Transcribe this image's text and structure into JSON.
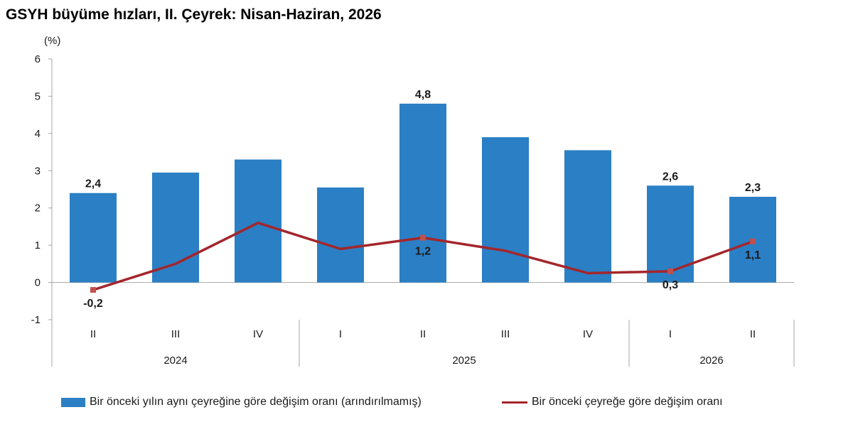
{
  "chart_data": {
    "type": "bar",
    "title": "GSYH büyüme hızları, II. Çeyrek: Nisan-Haziran, 2026",
    "unit_label": "(%)",
    "categories": [
      "II",
      "III",
      "IV",
      "I",
      "II",
      "III",
      "IV",
      "I",
      "II"
    ],
    "year_groups": [
      {
        "label": "2024",
        "span": 3
      },
      {
        "label": "2025",
        "span": 4
      },
      {
        "label": "2026",
        "span": 2
      }
    ],
    "ylim": [
      -1,
      6
    ],
    "yticks": [
      "-1",
      "0",
      "1",
      "2",
      "3",
      "4",
      "5",
      "6"
    ],
    "grid": false,
    "legend_position": "bottom",
    "series": [
      {
        "name": "Bir önceki yılın aynı çeyreğine göre değişim oranı (arındırılmamış)",
        "type": "bar",
        "color": "#2b7fc4",
        "values": [
          2.4,
          2.95,
          3.3,
          2.55,
          4.8,
          3.9,
          3.55,
          2.6,
          2.3
        ],
        "labels": [
          "2,4",
          "",
          "",
          "",
          "4,8",
          "",
          "",
          "2,6",
          "2,3"
        ]
      },
      {
        "name": "Bir önceki çeyreğe göre değişim oranı",
        "type": "line",
        "color": "#a3262c",
        "values": [
          -0.2,
          0.5,
          1.6,
          0.9,
          1.2,
          0.85,
          0.25,
          0.3,
          1.1
        ],
        "labels": [
          "-0,2",
          "",
          "",
          "",
          "1,2",
          "",
          "",
          "0,3",
          "1,1"
        ]
      }
    ]
  }
}
